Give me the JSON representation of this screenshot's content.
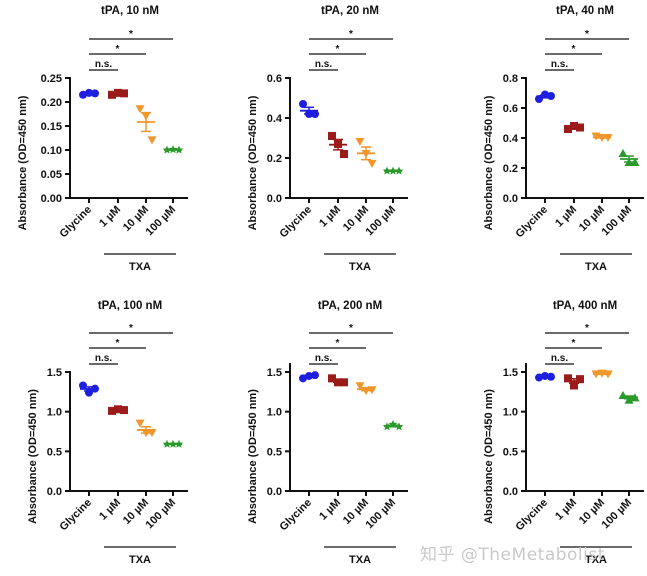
{
  "chart_data": [
    {
      "type": "scatter",
      "title": "tPA, 10 nM",
      "ylabel": "Absorbance (OD=450 nm)",
      "categories": [
        "Glycine",
        "1 µM",
        "10 µM",
        "100 µM"
      ],
      "group_label": "TXA",
      "yticks": [
        "0.00",
        "0.05",
        "0.10",
        "0.15",
        "0.20",
        "0.25"
      ],
      "ylim": [
        0,
        0.25
      ],
      "series": [
        {
          "name": "Glycine",
          "marker": "circle",
          "color": "#1f1fe0",
          "values": [
            0.215,
            0.219,
            0.218
          ]
        },
        {
          "name": "1 µM",
          "marker": "square",
          "color": "#9b1b1b",
          "values": [
            0.215,
            0.219,
            0.218
          ]
        },
        {
          "name": "10 µM",
          "marker": "triangle-down",
          "color": "#f0962a",
          "values": [
            0.185,
            0.17,
            0.12
          ]
        },
        {
          "name": "100 µM",
          "marker": "star",
          "color": "#2a9a2a",
          "values": [
            0.1,
            0.101,
            0.1
          ]
        }
      ],
      "significance": [
        {
          "from": "Glycine",
          "to": "1 µM",
          "label": "n.s."
        },
        {
          "from": "Glycine",
          "to": "10 µM",
          "label": "*"
        },
        {
          "from": "Glycine",
          "to": "100 µM",
          "label": "*"
        }
      ]
    },
    {
      "type": "scatter",
      "title": "tPA, 20 nM",
      "ylabel": "Absorbance (OD=450 nm)",
      "categories": [
        "Glycine",
        "1 µM",
        "10 µM",
        "100 µM"
      ],
      "group_label": "TXA",
      "yticks": [
        "0.0",
        "0.2",
        "0.4",
        "0.6"
      ],
      "ylim": [
        0,
        0.6
      ],
      "series": [
        {
          "name": "Glycine",
          "marker": "circle",
          "color": "#1f1fe0",
          "values": [
            0.47,
            0.42,
            0.42
          ]
        },
        {
          "name": "1 µM",
          "marker": "square",
          "color": "#9b1b1b",
          "values": [
            0.31,
            0.27,
            0.22
          ]
        },
        {
          "name": "10 µM",
          "marker": "triangle-down",
          "color": "#f0962a",
          "values": [
            0.28,
            0.22,
            0.17
          ]
        },
        {
          "name": "100 µM",
          "marker": "star",
          "color": "#2a9a2a",
          "values": [
            0.135,
            0.135,
            0.135
          ]
        }
      ],
      "significance": [
        {
          "from": "Glycine",
          "to": "1 µM",
          "label": "n.s."
        },
        {
          "from": "Glycine",
          "to": "10 µM",
          "label": "*"
        },
        {
          "from": "Glycine",
          "to": "100 µM",
          "label": "*"
        }
      ]
    },
    {
      "type": "scatter",
      "title": "tPA, 40 nM",
      "ylabel": "Absorbance (OD=450 nm)",
      "categories": [
        "Glycine",
        "1 µM",
        "10 µM",
        "100 µM"
      ],
      "group_label": "TXA",
      "yticks": [
        "0.0",
        "0.2",
        "0.4",
        "0.6",
        "0.8"
      ],
      "ylim": [
        0,
        0.8
      ],
      "series": [
        {
          "name": "Glycine",
          "marker": "circle",
          "color": "#1f1fe0",
          "values": [
            0.66,
            0.69,
            0.68
          ]
        },
        {
          "name": "1 µM",
          "marker": "square",
          "color": "#9b1b1b",
          "values": [
            0.46,
            0.48,
            0.47
          ]
        },
        {
          "name": "10 µM",
          "marker": "triangle-down",
          "color": "#f0962a",
          "values": [
            0.41,
            0.4,
            0.4
          ]
        },
        {
          "name": "100 µM",
          "marker": "triangle-up",
          "color": "#2a9a2a",
          "values": [
            0.3,
            0.24,
            0.24
          ]
        }
      ],
      "significance": [
        {
          "from": "Glycine",
          "to": "1 µM",
          "label": "n.s."
        },
        {
          "from": "Glycine",
          "to": "10 µM",
          "label": "*"
        },
        {
          "from": "Glycine",
          "to": "100 µM",
          "label": "*"
        }
      ]
    },
    {
      "type": "scatter",
      "title": "tPA, 100 nM",
      "ylabel": "Absorbance (OD=450 nm)",
      "categories": [
        "Glycine",
        "1 µM",
        "10 µM",
        "100 µM"
      ],
      "group_label": "TXA",
      "yticks": [
        "0.0",
        "0.5",
        "1.0",
        "1.5"
      ],
      "ylim": [
        0,
        1.5
      ],
      "series": [
        {
          "name": "Glycine",
          "marker": "circle",
          "color": "#1f1fe0",
          "values": [
            1.33,
            1.24,
            1.29
          ]
        },
        {
          "name": "1 µM",
          "marker": "square",
          "color": "#9b1b1b",
          "values": [
            1.01,
            1.03,
            1.02
          ]
        },
        {
          "name": "10 µM",
          "marker": "triangle-down",
          "color": "#f0962a",
          "values": [
            0.85,
            0.73,
            0.73
          ]
        },
        {
          "name": "100 µM",
          "marker": "star",
          "color": "#2a9a2a",
          "values": [
            0.59,
            0.59,
            0.59
          ]
        }
      ],
      "significance": [
        {
          "from": "Glycine",
          "to": "1 µM",
          "label": "n.s."
        },
        {
          "from": "Glycine",
          "to": "10 µM",
          "label": "*"
        },
        {
          "from": "Glycine",
          "to": "100 µM",
          "label": "*"
        }
      ]
    },
    {
      "type": "scatter",
      "title": "tPA, 200 nM",
      "ylabel": "Absorbance (OD=450 nm)",
      "categories": [
        "Glycine",
        "1 µM",
        "10 µM",
        "100 µM"
      ],
      "group_label": "TXA",
      "yticks": [
        "0.0",
        "0.5",
        "1.0",
        "1.5"
      ],
      "ylim": [
        0,
        1.6
      ],
      "series": [
        {
          "name": "Glycine",
          "marker": "circle",
          "color": "#1f1fe0",
          "values": [
            1.42,
            1.45,
            1.46
          ]
        },
        {
          "name": "1 µM",
          "marker": "square",
          "color": "#9b1b1b",
          "values": [
            1.42,
            1.37,
            1.37
          ]
        },
        {
          "name": "10 µM",
          "marker": "triangle-down",
          "color": "#f0962a",
          "values": [
            1.32,
            1.26,
            1.27
          ]
        },
        {
          "name": "100 µM",
          "marker": "star",
          "color": "#2a9a2a",
          "values": [
            0.81,
            0.84,
            0.81
          ]
        }
      ],
      "significance": [
        {
          "from": "Glycine",
          "to": "1 µM",
          "label": "n.s."
        },
        {
          "from": "Glycine",
          "to": "10 µM",
          "label": "*"
        },
        {
          "from": "Glycine",
          "to": "100 µM",
          "label": "*"
        }
      ]
    },
    {
      "type": "scatter",
      "title": "tPA, 400 nM",
      "ylabel": "Absorbance (OD=450 nm)",
      "categories": [
        "Glycine",
        "1 µM",
        "10 µM",
        "100 µM"
      ],
      "group_label": "TXA",
      "yticks": [
        "0.0",
        "0.5",
        "1.0",
        "1.5"
      ],
      "ylim": [
        0,
        1.6
      ],
      "series": [
        {
          "name": "Glycine",
          "marker": "circle",
          "color": "#1f1fe0",
          "values": [
            1.43,
            1.45,
            1.44
          ]
        },
        {
          "name": "1 µM",
          "marker": "square",
          "color": "#9b1b1b",
          "values": [
            1.42,
            1.33,
            1.41
          ]
        },
        {
          "name": "10 µM",
          "marker": "triangle-down",
          "color": "#f0962a",
          "values": [
            1.47,
            1.48,
            1.47
          ]
        },
        {
          "name": "100 µM",
          "marker": "triangle-up",
          "color": "#2a9a2a",
          "values": [
            1.21,
            1.15,
            1.18
          ]
        }
      ],
      "significance": [
        {
          "from": "Glycine",
          "to": "1 µM",
          "label": "n.s."
        },
        {
          "from": "Glycine",
          "to": "10 µM",
          "label": "*"
        },
        {
          "from": "Glycine",
          "to": "100 µM",
          "label": "*"
        }
      ]
    }
  ],
  "watermark": "知乎 @TheMetabolist"
}
